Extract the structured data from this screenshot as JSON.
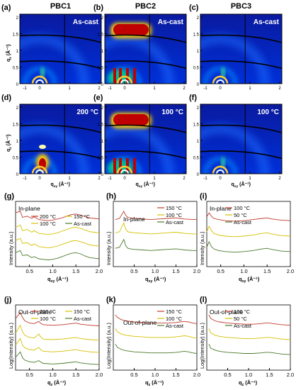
{
  "figure": {
    "column_titles": [
      "PBC1",
      "PBC2",
      "PBC3"
    ],
    "panels_2d": [
      {
        "label": "(a)",
        "condition": "As-cast",
        "polymer": "PBC1",
        "intensity": "low"
      },
      {
        "label": "(b)",
        "condition": "As-cast",
        "polymer": "PBC2",
        "intensity": "high"
      },
      {
        "label": "(c)",
        "condition": "As-cast",
        "polymer": "PBC3",
        "intensity": "low"
      },
      {
        "label": "(d)",
        "condition": "200 °C",
        "polymer": "PBC1",
        "intensity": "medium"
      },
      {
        "label": "(e)",
        "condition": "100 °C",
        "polymer": "PBC2",
        "intensity": "high"
      },
      {
        "label": "(f)",
        "condition": "100 °C",
        "polymer": "PBC3",
        "intensity": "low"
      }
    ],
    "axis_2d": {
      "xlabel": "q",
      "xlabel_sub": "xy",
      "xlabel_unit": " (Å⁻¹)",
      "ylabel": "q",
      "ylabel_sub": "z",
      "ylabel_unit": " (Å⁻¹)",
      "x_ticks": [
        "0",
        "1",
        "2"
      ],
      "x_ticks_left": [
        "0",
        "0.5",
        "1",
        "1.5",
        "2"
      ],
      "y_ticks": [
        "0",
        "0.5",
        "1",
        "1.5",
        "2"
      ]
    },
    "colormap": [
      "#00008b",
      "#0044ff",
      "#00c8ff",
      "#40ff80",
      "#ffff00",
      "#ff8000",
      "#c00000"
    ],
    "line_colors": {
      "hot": "#c0392b",
      "mid": "#d4c000",
      "cast": "#4a7a2a"
    }
  },
  "chart_data": [
    {
      "type": "line",
      "label": "(g)",
      "title": "In-plane",
      "xlabel": "q",
      "xlabel_sub": "xy",
      "xlabel_unit": " (Å⁻¹)",
      "ylabel": "Intensity (a.u.)",
      "xlim": [
        0.2,
        2.0
      ],
      "x_ticks": [
        "0.5",
        "1.0",
        "1.5",
        "2.0"
      ],
      "series": [
        {
          "name": "200 °C",
          "color": "hot",
          "x": [
            0.2,
            0.3,
            0.35,
            0.45,
            0.55,
            0.6,
            0.7,
            0.8,
            0.9,
            1.0,
            1.1,
            1.2,
            1.3,
            1.4,
            1.5,
            1.6,
            1.7,
            1.8,
            1.9,
            2.0
          ],
          "y": [
            0.92,
            0.95,
            0.84,
            0.86,
            0.82,
            0.85,
            0.8,
            0.79,
            0.78,
            0.79,
            0.81,
            0.83,
            0.86,
            0.89,
            0.9,
            0.88,
            0.85,
            0.83,
            0.82,
            0.81
          ]
        },
        {
          "name": "150 °C",
          "color": "mid",
          "x": [
            0.2,
            0.3,
            0.35,
            0.45,
            0.55,
            0.6,
            0.7,
            0.8,
            0.9,
            1.0,
            1.1,
            1.2,
            1.3,
            1.4,
            1.5,
            1.6,
            1.7,
            1.8,
            1.9,
            2.0
          ],
          "y": [
            0.66,
            0.7,
            0.6,
            0.62,
            0.57,
            0.6,
            0.55,
            0.54,
            0.53,
            0.54,
            0.56,
            0.59,
            0.62,
            0.65,
            0.66,
            0.64,
            0.61,
            0.58,
            0.57,
            0.56
          ]
        },
        {
          "name": "100 °C",
          "color": "mid",
          "x": [
            0.2,
            0.3,
            0.35,
            0.45,
            0.55,
            0.6,
            0.7,
            0.8,
            0.9,
            1.0,
            1.1,
            1.2,
            1.3,
            1.4,
            1.5,
            1.6,
            1.7,
            1.8,
            1.9,
            2.0
          ],
          "y": [
            0.42,
            0.46,
            0.37,
            0.38,
            0.33,
            0.36,
            0.31,
            0.3,
            0.29,
            0.3,
            0.32,
            0.35,
            0.38,
            0.41,
            0.42,
            0.4,
            0.37,
            0.34,
            0.33,
            0.32
          ]
        },
        {
          "name": "As-cast",
          "color": "cast",
          "x": [
            0.2,
            0.3,
            0.35,
            0.45,
            0.55,
            0.6,
            0.7,
            0.8,
            0.9,
            1.0,
            1.1,
            1.2,
            1.3,
            1.4,
            1.5,
            1.6,
            1.7,
            1.8,
            1.9,
            2.0
          ],
          "y": [
            0.2,
            0.24,
            0.15,
            0.16,
            0.11,
            0.13,
            0.09,
            0.08,
            0.07,
            0.08,
            0.1,
            0.13,
            0.16,
            0.19,
            0.2,
            0.18,
            0.14,
            0.11,
            0.1,
            0.09
          ]
        }
      ]
    },
    {
      "type": "line",
      "label": "(h)",
      "title": "In-plane",
      "xlabel": "q",
      "xlabel_sub": "xy",
      "xlabel_unit": " (Å⁻¹)",
      "ylabel": "Intensity (a.u.)",
      "xlim": [
        0.0,
        2.0
      ],
      "x_ticks": [
        "0.5",
        "1.0",
        "1.5",
        "2.0"
      ],
      "series": [
        {
          "name": "150 °C",
          "color": "hot",
          "x": [
            0.05,
            0.15,
            0.25,
            0.3,
            0.35,
            0.4,
            0.5,
            0.7,
            0.9,
            1.1,
            1.3,
            1.5,
            1.7,
            1.9,
            2.0
          ],
          "y": [
            0.8,
            0.82,
            0.95,
            0.87,
            0.84,
            0.83,
            0.82,
            0.81,
            0.8,
            0.81,
            0.82,
            0.83,
            0.81,
            0.8,
            0.8
          ]
        },
        {
          "name": "100 °C",
          "color": "mid",
          "x": [
            0.05,
            0.15,
            0.25,
            0.3,
            0.35,
            0.4,
            0.5,
            0.7,
            0.9,
            1.1,
            1.3,
            1.5,
            1.7,
            1.9,
            2.0
          ],
          "y": [
            0.56,
            0.58,
            0.74,
            0.62,
            0.58,
            0.57,
            0.56,
            0.55,
            0.54,
            0.55,
            0.56,
            0.57,
            0.55,
            0.54,
            0.54
          ]
        },
        {
          "name": "As-cast",
          "color": "cast",
          "x": [
            0.05,
            0.15,
            0.25,
            0.3,
            0.35,
            0.4,
            0.5,
            0.7,
            0.9,
            1.1,
            1.3,
            1.5,
            1.7,
            1.9,
            2.0
          ],
          "y": [
            0.28,
            0.3,
            0.44,
            0.32,
            0.28,
            0.27,
            0.26,
            0.25,
            0.24,
            0.25,
            0.26,
            0.27,
            0.25,
            0.24,
            0.24
          ]
        }
      ]
    },
    {
      "type": "line",
      "label": "(i)",
      "title": "In-plane",
      "xlabel": "q",
      "xlabel_sub": "xy",
      "xlabel_unit": " (Å⁻¹)",
      "ylabel": "Intensity (a.u.)",
      "xlim": [
        0.2,
        2.0
      ],
      "x_ticks": [
        "0.5",
        "1.0",
        "1.5",
        "2.0"
      ],
      "series": [
        {
          "name": "100 °C",
          "color": "hot",
          "x": [
            0.2,
            0.25,
            0.3,
            0.35,
            0.45,
            0.6,
            0.8,
            1.0,
            1.2,
            1.4,
            1.5,
            1.6,
            1.8,
            2.0
          ],
          "y": [
            0.85,
            0.92,
            0.86,
            0.82,
            0.8,
            0.78,
            0.77,
            0.78,
            0.8,
            0.82,
            0.83,
            0.81,
            0.79,
            0.78
          ]
        },
        {
          "name": "50 °C",
          "color": "mid",
          "x": [
            0.2,
            0.25,
            0.3,
            0.35,
            0.45,
            0.6,
            0.8,
            1.0,
            1.2,
            1.4,
            1.5,
            1.6,
            1.8,
            2.0
          ],
          "y": [
            0.58,
            0.68,
            0.6,
            0.55,
            0.52,
            0.5,
            0.49,
            0.5,
            0.52,
            0.55,
            0.56,
            0.54,
            0.51,
            0.5
          ]
        },
        {
          "name": "As-cast",
          "color": "cast",
          "x": [
            0.2,
            0.25,
            0.3,
            0.35,
            0.45,
            0.6,
            0.8,
            1.0,
            1.2,
            1.4,
            1.5,
            1.6,
            1.8,
            2.0
          ],
          "y": [
            0.3,
            0.4,
            0.31,
            0.27,
            0.24,
            0.22,
            0.21,
            0.22,
            0.24,
            0.27,
            0.28,
            0.26,
            0.23,
            0.22
          ]
        }
      ]
    },
    {
      "type": "line",
      "label": "(j)",
      "title": "Out-of-plane",
      "xlabel": "q",
      "xlabel_sub": "z",
      "xlabel_unit": " (Å⁻¹)",
      "ylabel": "Log(Intensity) (a.u.)",
      "xlim": [
        0.2,
        2.0
      ],
      "x_ticks": [
        "0.5",
        "1.0",
        "1.5",
        "2.0"
      ],
      "series": [
        {
          "name": "200 °C",
          "color": "hot",
          "x": [
            0.2,
            0.3,
            0.35,
            0.4,
            0.5,
            0.6,
            0.7,
            0.75,
            0.8,
            1.0,
            1.2,
            1.4,
            1.5,
            1.6,
            1.8,
            2.0
          ],
          "y": [
            0.88,
            0.99,
            0.9,
            0.84,
            0.8,
            0.79,
            0.83,
            0.79,
            0.77,
            0.76,
            0.77,
            0.79,
            0.8,
            0.78,
            0.76,
            0.75
          ]
        },
        {
          "name": "150 °C",
          "color": "mid",
          "x": [
            0.2,
            0.3,
            0.35,
            0.4,
            0.5,
            0.6,
            0.7,
            0.75,
            0.8,
            1.0,
            1.2,
            1.4,
            1.5,
            1.6,
            1.8,
            2.0
          ],
          "y": [
            0.62,
            0.76,
            0.64,
            0.58,
            0.54,
            0.53,
            0.6,
            0.54,
            0.51,
            0.5,
            0.51,
            0.53,
            0.54,
            0.52,
            0.5,
            0.49
          ]
        },
        {
          "name": "100 °C",
          "color": "mid",
          "x": [
            0.2,
            0.3,
            0.35,
            0.4,
            0.5,
            0.6,
            0.7,
            0.75,
            0.8,
            1.0,
            1.2,
            1.4,
            1.5,
            1.6,
            1.8,
            2.0
          ],
          "y": [
            0.4,
            0.52,
            0.4,
            0.35,
            0.32,
            0.31,
            0.36,
            0.31,
            0.29,
            0.28,
            0.29,
            0.31,
            0.32,
            0.3,
            0.28,
            0.27
          ]
        },
        {
          "name": "As-cast",
          "color": "cast",
          "x": [
            0.2,
            0.3,
            0.35,
            0.4,
            0.5,
            0.6,
            0.7,
            0.75,
            0.8,
            1.0,
            1.2,
            1.4,
            1.5,
            1.6,
            1.8,
            2.0
          ],
          "y": [
            0.18,
            0.28,
            0.17,
            0.13,
            0.1,
            0.09,
            0.12,
            0.09,
            0.07,
            0.06,
            0.07,
            0.09,
            0.1,
            0.08,
            0.06,
            0.05
          ]
        }
      ]
    },
    {
      "type": "line",
      "label": "(k)",
      "title": "Out-of-plane",
      "xlabel": "q",
      "xlabel_sub": "z",
      "xlabel_unit": " (Å⁻¹)",
      "ylabel": "Log(Intensity) (a.u.)",
      "xlim": [
        0.0,
        2.0
      ],
      "x_ticks": [
        "0.5",
        "1.0",
        "1.5",
        "2.0"
      ],
      "series": [
        {
          "name": "150 °C",
          "color": "hot",
          "x": [
            0.05,
            0.1,
            0.2,
            0.3,
            0.5,
            0.7,
            0.9,
            1.1,
            1.3,
            1.5,
            1.6,
            1.7,
            1.8,
            1.9,
            2.0
          ],
          "y": [
            0.95,
            0.9,
            0.86,
            0.84,
            0.82,
            0.81,
            0.8,
            0.8,
            0.8,
            0.81,
            0.82,
            0.83,
            0.82,
            0.8,
            0.79
          ]
        },
        {
          "name": "100 °C",
          "color": "mid",
          "x": [
            0.05,
            0.1,
            0.2,
            0.3,
            0.5,
            0.7,
            0.9,
            1.1,
            1.3,
            1.5,
            1.6,
            1.7,
            1.8,
            1.9,
            2.0
          ],
          "y": [
            0.7,
            0.64,
            0.6,
            0.58,
            0.56,
            0.55,
            0.54,
            0.54,
            0.54,
            0.55,
            0.56,
            0.57,
            0.56,
            0.54,
            0.53
          ]
        },
        {
          "name": "As-cast",
          "color": "cast",
          "x": [
            0.05,
            0.1,
            0.2,
            0.3,
            0.5,
            0.7,
            0.9,
            1.1,
            1.3,
            1.5,
            1.6,
            1.7,
            1.8,
            1.9,
            2.0
          ],
          "y": [
            0.42,
            0.36,
            0.32,
            0.3,
            0.28,
            0.27,
            0.26,
            0.26,
            0.26,
            0.27,
            0.28,
            0.29,
            0.28,
            0.26,
            0.25
          ]
        }
      ]
    },
    {
      "type": "line",
      "label": "(l)",
      "title": "Out-of-plane",
      "xlabel": "q",
      "xlabel_sub": "z",
      "xlabel_unit": " (Å⁻¹)",
      "ylabel": "Log(Intensity) (a.u.)",
      "xlim": [
        0.0,
        2.0
      ],
      "x_ticks": [
        "0.5",
        "1.0",
        "1.5",
        "2.0"
      ],
      "series": [
        {
          "name": "100 °C",
          "color": "hot",
          "x": [
            0.05,
            0.1,
            0.15,
            0.2,
            0.3,
            0.5,
            0.7,
            0.9,
            1.1,
            1.3,
            1.4,
            1.5,
            1.6,
            1.8,
            2.0
          ],
          "y": [
            0.95,
            0.88,
            0.86,
            0.84,
            0.82,
            0.8,
            0.79,
            0.78,
            0.78,
            0.79,
            0.8,
            0.8,
            0.79,
            0.77,
            0.76
          ]
        },
        {
          "name": "50 °C",
          "color": "mid",
          "x": [
            0.05,
            0.1,
            0.15,
            0.2,
            0.3,
            0.5,
            0.7,
            0.9,
            1.1,
            1.3,
            1.4,
            1.5,
            1.6,
            1.8,
            2.0
          ],
          "y": [
            0.7,
            0.62,
            0.6,
            0.58,
            0.56,
            0.54,
            0.53,
            0.52,
            0.52,
            0.53,
            0.54,
            0.54,
            0.53,
            0.51,
            0.5
          ]
        },
        {
          "name": "As-cast",
          "color": "cast",
          "x": [
            0.05,
            0.1,
            0.15,
            0.2,
            0.3,
            0.5,
            0.7,
            0.9,
            1.1,
            1.3,
            1.4,
            1.5,
            1.6,
            1.8,
            2.0
          ],
          "y": [
            0.42,
            0.34,
            0.33,
            0.31,
            0.29,
            0.27,
            0.26,
            0.25,
            0.25,
            0.26,
            0.27,
            0.27,
            0.26,
            0.24,
            0.23
          ]
        }
      ]
    }
  ]
}
